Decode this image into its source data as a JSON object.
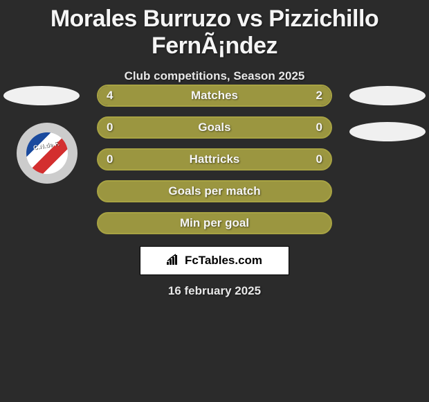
{
  "title": "Morales Burruzo vs Pizzichillo FernÃ¡ndez",
  "subtitle": "Club competitions, Season 2025",
  "date": "16 february 2025",
  "branding": "FcTables.com",
  "club_logo_text": "C.N.de F.",
  "colors": {
    "background": "#2b2b2b",
    "text": "#f5f5f5",
    "bar_border": "#a8a343",
    "fill_left": "#9b9640",
    "fill_right": "#9b9640"
  },
  "stats": [
    {
      "label": "Matches",
      "left_value": "4",
      "right_value": "2",
      "left_pct": 67,
      "right_pct": 33,
      "show_values": true,
      "bg": "#3a3a3a",
      "border": "#a8a343"
    },
    {
      "label": "Goals",
      "left_value": "0",
      "right_value": "0",
      "left_pct": 100,
      "right_pct": 0,
      "show_values": true,
      "bg": "#9b9640",
      "border": "#a8a343"
    },
    {
      "label": "Hattricks",
      "left_value": "0",
      "right_value": "0",
      "left_pct": 100,
      "right_pct": 0,
      "show_values": true,
      "bg": "#9b9640",
      "border": "#a8a343"
    },
    {
      "label": "Goals per match",
      "left_value": "",
      "right_value": "",
      "left_pct": 0,
      "right_pct": 0,
      "show_values": false,
      "bg": "#9b9640",
      "border": "#a8a343"
    },
    {
      "label": "Min per goal",
      "left_value": "",
      "right_value": "",
      "left_pct": 0,
      "right_pct": 0,
      "show_values": false,
      "bg": "#9b9640",
      "border": "#a8a343"
    }
  ]
}
